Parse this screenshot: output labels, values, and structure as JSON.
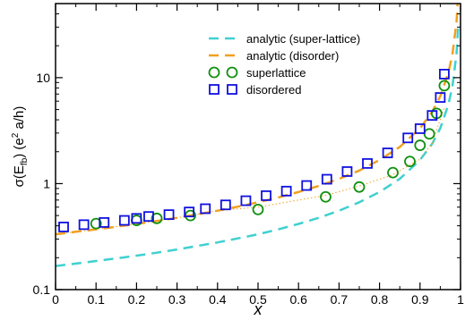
{
  "chart_data": {
    "type": "line",
    "xlabel": "x",
    "ylabel": {
      "main": "σ(E",
      "sub": "fb",
      "after": ") (e",
      "sup": "2",
      "tail": " a/h)"
    },
    "xlim": [
      0,
      1
    ],
    "ylim": [
      0.1,
      50
    ],
    "yscale": "log",
    "grid": false,
    "legend_position": "top-right",
    "x_ticks": [
      0,
      0.1,
      0.2,
      0.3,
      0.4,
      0.5,
      0.6,
      0.7,
      0.8,
      0.9,
      1
    ],
    "x_tick_labels": [
      "0",
      "0.1",
      "0.2",
      "0.3",
      "0.4",
      "0.5",
      "0.6",
      "0.7",
      "0.8",
      "0.9",
      "1"
    ],
    "y_ticks": [
      0.1,
      1,
      10
    ],
    "y_tick_labels": [
      "0.1",
      "1",
      "10"
    ],
    "colors": {
      "analytic_superlattice": "#40d0d0",
      "analytic_disorder": "#f0a020",
      "superlattice": "#109010",
      "disordered": "#1010e0",
      "dotted": "#f0a020"
    },
    "series": [
      {
        "name": "analytic (super-lattice)",
        "kind": "dashed-line",
        "x": [
          0,
          0.05,
          0.1,
          0.15,
          0.2,
          0.25,
          0.3,
          0.35,
          0.4,
          0.45,
          0.5,
          0.55,
          0.6,
          0.65,
          0.7,
          0.75,
          0.8,
          0.85,
          0.9,
          0.93,
          0.95,
          0.97,
          0.98,
          0.99,
          0.995
        ],
        "y": [
          0.167,
          0.176,
          0.186,
          0.197,
          0.209,
          0.223,
          0.239,
          0.258,
          0.279,
          0.304,
          0.333,
          0.37,
          0.417,
          0.476,
          0.556,
          0.667,
          0.833,
          1.11,
          1.67,
          2.38,
          3.33,
          5.56,
          8.33,
          16.7,
          33.3
        ]
      },
      {
        "name": "analytic (disorder)",
        "kind": "dashed-line",
        "x": [
          0,
          0.05,
          0.1,
          0.15,
          0.2,
          0.25,
          0.3,
          0.35,
          0.4,
          0.45,
          0.5,
          0.55,
          0.6,
          0.65,
          0.7,
          0.75,
          0.8,
          0.85,
          0.9,
          0.93,
          0.95,
          0.97,
          0.98,
          0.99,
          0.995
        ],
        "y": [
          0.333,
          0.351,
          0.37,
          0.392,
          0.417,
          0.444,
          0.476,
          0.513,
          0.556,
          0.606,
          0.667,
          0.741,
          0.833,
          0.952,
          1.11,
          1.33,
          1.67,
          2.22,
          3.33,
          4.76,
          6.67,
          11.1,
          16.7,
          33.3,
          66.7
        ]
      },
      {
        "name": "",
        "kind": "dotted-line",
        "x": [
          0,
          0.1,
          0.2,
          0.3,
          0.4,
          0.5,
          0.6,
          0.67,
          0.75,
          0.83,
          0.9,
          0.93,
          0.96
        ],
        "y": [
          0.333,
          0.37,
          0.417,
          0.476,
          0.556,
          0.6,
          0.7,
          0.78,
          0.95,
          1.2,
          1.7,
          2.4,
          5.2
        ]
      },
      {
        "name": "superlattice",
        "kind": "circle",
        "x": [
          0.1,
          0.2,
          0.25,
          0.333,
          0.5,
          0.667,
          0.75,
          0.833,
          0.875,
          0.9,
          0.923,
          0.941,
          0.96
        ],
        "y": [
          0.42,
          0.45,
          0.47,
          0.5,
          0.57,
          0.75,
          0.93,
          1.27,
          1.62,
          2.3,
          2.95,
          4.6,
          8.4
        ]
      },
      {
        "name": "disordered",
        "kind": "square",
        "x": [
          0.02,
          0.07,
          0.12,
          0.17,
          0.2,
          0.23,
          0.28,
          0.33,
          0.37,
          0.42,
          0.47,
          0.52,
          0.57,
          0.62,
          0.67,
          0.72,
          0.77,
          0.82,
          0.87,
          0.9,
          0.93,
          0.95,
          0.96
        ],
        "y": [
          0.39,
          0.41,
          0.43,
          0.45,
          0.47,
          0.49,
          0.51,
          0.54,
          0.58,
          0.63,
          0.69,
          0.77,
          0.85,
          0.96,
          1.1,
          1.3,
          1.55,
          1.95,
          2.7,
          3.3,
          4.4,
          6.5,
          10.8
        ]
      }
    ]
  }
}
